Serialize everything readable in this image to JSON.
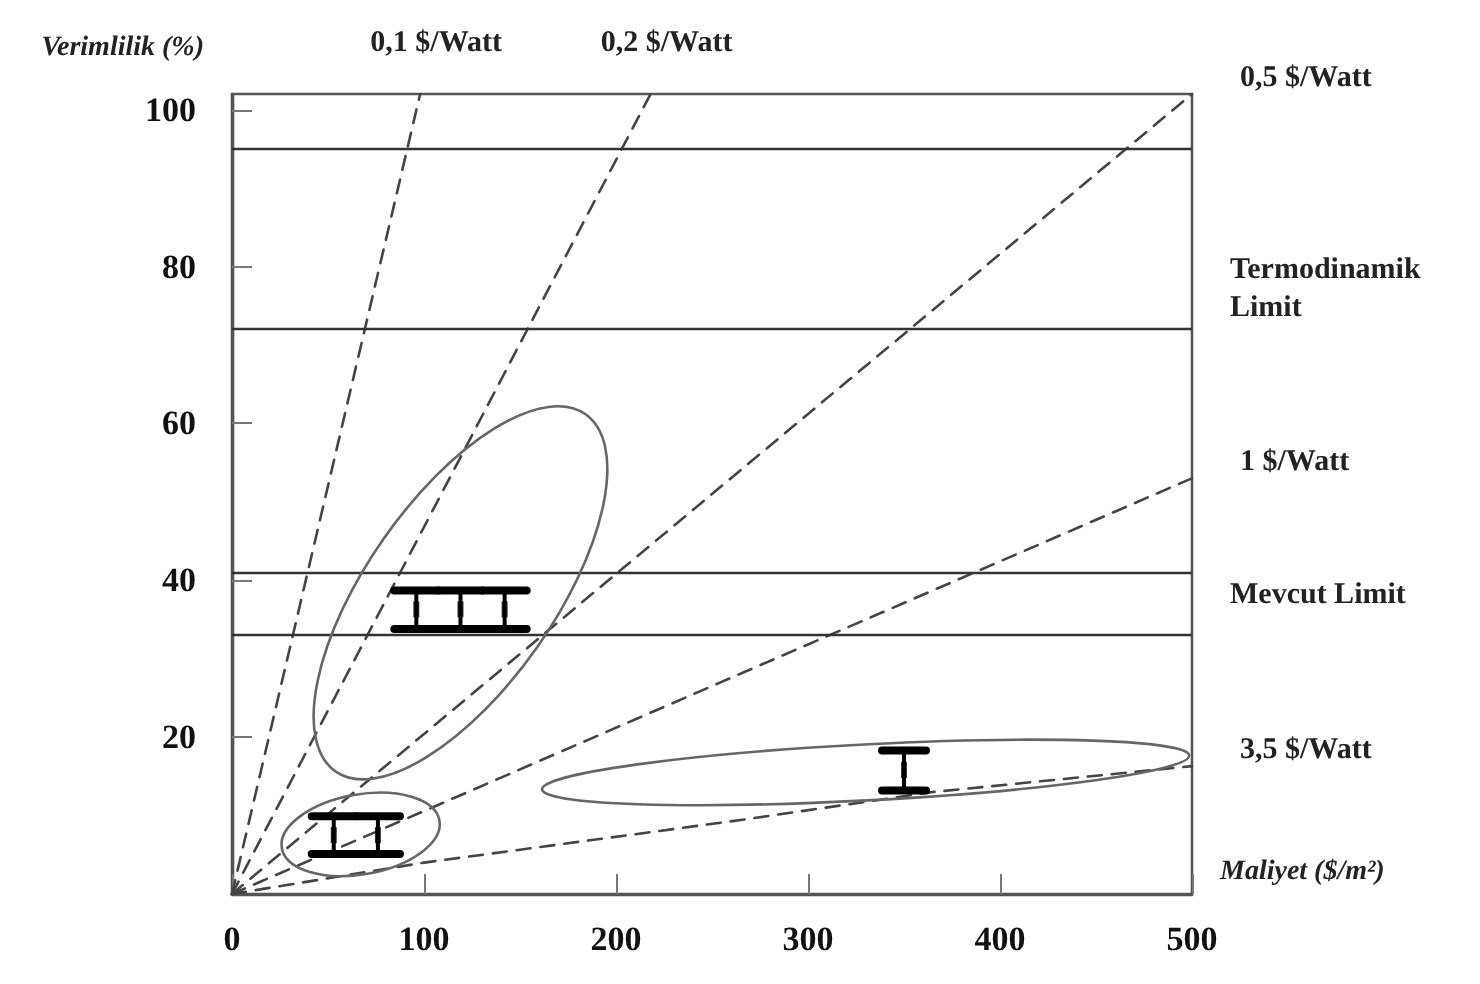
{
  "chart_data": {
    "type": "line",
    "xlabel": "Maliyet ($/m²)",
    "ylabel": "Verimlilik (%)",
    "marker": "none",
    "grid": false,
    "xlim": [
      0,
      500
    ],
    "xticks": [
      0,
      100,
      200,
      300,
      400,
      500
    ],
    "ylim": [
      0,
      102
    ],
    "yticks": [
      20,
      40,
      60,
      80,
      100
    ],
    "series": [
      {
        "name": "0,1 $/Watt",
        "color": "#444444",
        "line_style": "dashed",
        "x": [
          0,
          98
        ],
        "values": [
          0,
          102
        ]
      },
      {
        "name": "0,2 $/Watt",
        "color": "#444444",
        "line_style": "dashed",
        "x": [
          0,
          218
        ],
        "values": [
          0,
          102
        ]
      },
      {
        "name": "0,5 $/Watt",
        "color": "#444444",
        "line_style": "dashed",
        "x": [
          0,
          500
        ],
        "values": [
          0,
          102
        ]
      },
      {
        "name": "1 $/Watt",
        "color": "#444444",
        "line_style": "dashed",
        "x": [
          0,
          104,
          264,
          500
        ],
        "values": [
          0,
          11,
          28,
          53
        ]
      },
      {
        "name": "3,5 $/Watt",
        "color": "#444444",
        "line_style": "dashed",
        "x": [
          0,
          100,
          264,
          365,
          500
        ],
        "values": [
          0,
          4,
          9.4,
          13,
          16.3
        ]
      },
      {
        "type": "scatter",
        "marker": "square",
        "color": "#000000",
        "x": [
          53,
          76,
          96,
          119,
          142,
          350
        ],
        "values": [
          7.5,
          7.5,
          36.3,
          36.3,
          36.3,
          15.8
        ],
        "errors": [
          [
            5.1,
            9.9
          ],
          [
            5.1,
            9.9
          ],
          [
            33.8,
            38.7
          ],
          [
            33.8,
            38.7
          ],
          [
            33.8,
            38.7
          ],
          [
            13.2,
            18.3
          ]
        ]
      }
    ],
    "ref_lines": [
      {
        "axis": "y",
        "value": 95,
        "label": null,
        "color": "#333333"
      },
      {
        "axis": "y",
        "value": 72,
        "label": "Termodinamik Limit",
        "color": "#333333"
      },
      {
        "axis": "y",
        "value": 41,
        "label": null,
        "color": "#333333"
      },
      {
        "axis": "y",
        "value": 33,
        "label": "Mevcut Limit",
        "color": "#333333"
      }
    ]
  }
}
